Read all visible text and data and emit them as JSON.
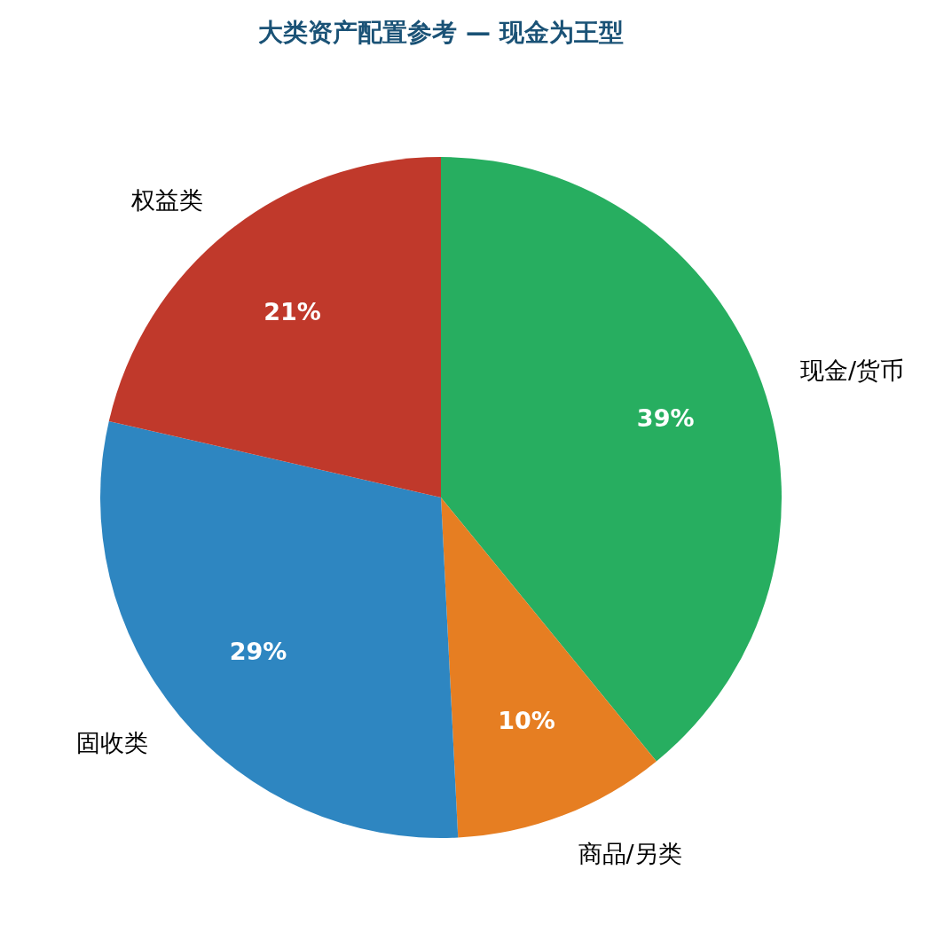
{
  "chart_data": {
    "type": "pie",
    "title": "大类资产配置参考 — 现金为王型",
    "categories": [
      "现金/货币",
      "商品/另类",
      "固收类",
      "权益类"
    ],
    "values": [
      39.1,
      10.1,
      29.4,
      21.4
    ],
    "value_labels": [
      "39%",
      "10%",
      "29%",
      "21%"
    ],
    "colors": [
      "#27ae60",
      "#e67e22",
      "#2e86c1",
      "#c0392b"
    ]
  }
}
